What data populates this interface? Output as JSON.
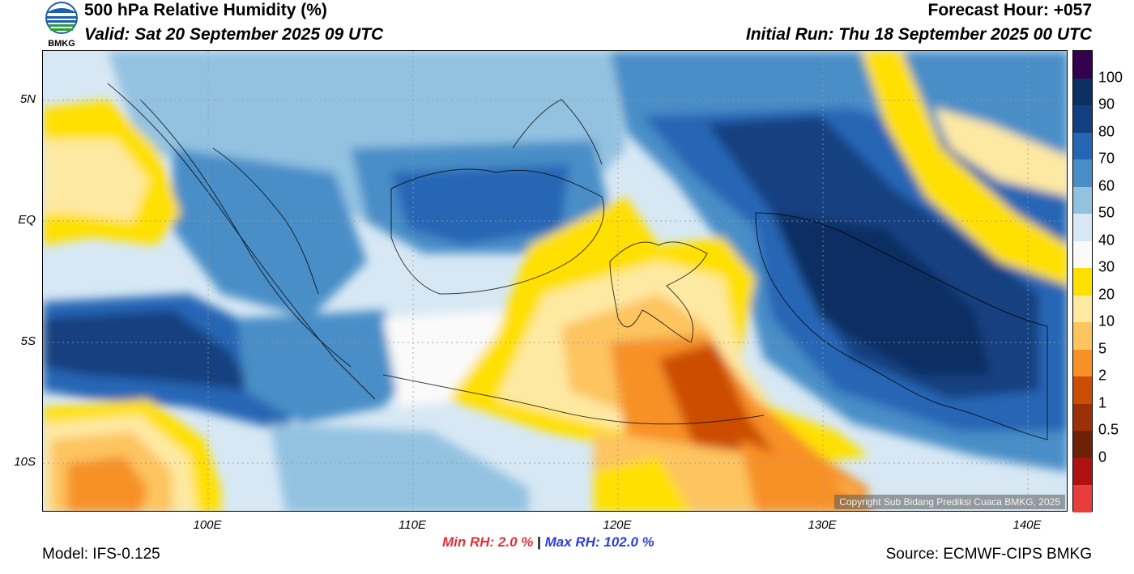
{
  "header": {
    "title": "500 hPa Relative Humidity (%)",
    "valid": "Valid: Sat 20 September 2025 09 UTC",
    "forecast_hour": "Forecast Hour: +057",
    "initial_run": "Initial Run: Thu 18 September 2025 00 UTC"
  },
  "logo": {
    "text": "BMKG"
  },
  "map": {
    "copyright": "Copyright Sub Bidang Prediksi Cuaca BMKG, 2025",
    "lat_labels": [
      "5N",
      "EQ",
      "5S",
      "10S"
    ],
    "lon_labels": [
      "100E",
      "110E",
      "120E",
      "130E",
      "140E"
    ]
  },
  "colorbar": {
    "labels": [
      "100",
      "90",
      "80",
      "70",
      "60",
      "50",
      "40",
      "30",
      "20",
      "10",
      "5",
      "2",
      "1",
      "0.5",
      "0"
    ],
    "colors": [
      "#33004d",
      "#0c2f62",
      "#123f80",
      "#2566b5",
      "#4a8ec7",
      "#93c2e1",
      "#d7e8f4",
      "#fafafa",
      "#ffe000",
      "#fee9a3",
      "#fdc45f",
      "#f79126",
      "#cc4d04",
      "#9b3008",
      "#6e2109",
      "#b01111",
      "#e93c3c"
    ]
  },
  "stats": {
    "min": "Min RH:   2.0 %",
    "separator": "|",
    "max": "Max RH: 102.0 %"
  },
  "footer": {
    "model": "Model: IFS-0.125",
    "source": "Source: ECMWF-CIPS BMKG"
  }
}
